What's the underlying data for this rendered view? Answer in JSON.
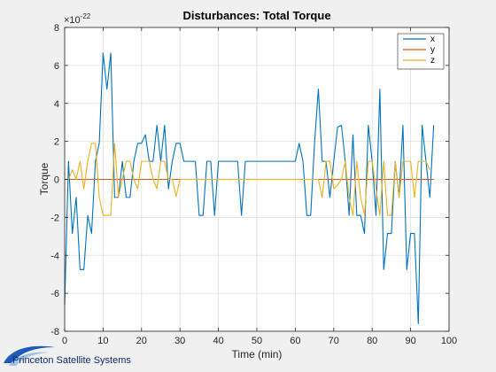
{
  "chart_data": {
    "type": "line",
    "title": "Disturbances: Total Torque",
    "xlabel": "Time (min)",
    "ylabel": "Torque",
    "exponent_label": "×10",
    "exponent": "-22",
    "xlim": [
      0,
      100
    ],
    "ylim": [
      -8,
      8
    ],
    "xticks": [
      0,
      10,
      20,
      30,
      40,
      50,
      60,
      70,
      80,
      90,
      100
    ],
    "yticks": [
      -8,
      -6,
      -4,
      -2,
      0,
      2,
      4,
      6,
      8
    ],
    "grid": true,
    "legend_position": "top-right",
    "series": [
      {
        "name": "x",
        "color": "#0072BD",
        "x": [
          0,
          1,
          2,
          3,
          4,
          5,
          6,
          7,
          8,
          9,
          10,
          11,
          12,
          13,
          14,
          15,
          16,
          17,
          18,
          19,
          20,
          21,
          22,
          23,
          24,
          25,
          26,
          27,
          28,
          29,
          30,
          31,
          32,
          33,
          34,
          35,
          36,
          37,
          38,
          39,
          40,
          41,
          42,
          43,
          44,
          45,
          46,
          47,
          48,
          49,
          50,
          51,
          52,
          53,
          54,
          55,
          56,
          57,
          58,
          59,
          60,
          61,
          62,
          63,
          64,
          65,
          66,
          67,
          68,
          69,
          70,
          71,
          72,
          73,
          74,
          75,
          76,
          77,
          78,
          79,
          80,
          81,
          82,
          83,
          84,
          85,
          86,
          87,
          88,
          89,
          90,
          91,
          92,
          93,
          94,
          95,
          96
        ],
        "y": [
          -6.6,
          0.95,
          -2.85,
          -0.95,
          -4.75,
          -4.75,
          -1.9,
          -2.85,
          0.95,
          1.9,
          6.65,
          4.75,
          6.65,
          -0.95,
          -0.95,
          0.95,
          -0.95,
          -0.95,
          0.95,
          1.9,
          1.9,
          2.35,
          0.95,
          0.95,
          2.85,
          0.95,
          2.85,
          -0.5,
          0.95,
          1.9,
          1.9,
          0.95,
          0.95,
          0.95,
          0.95,
          -1.9,
          -1.9,
          0.95,
          0.95,
          -1.9,
          0.95,
          0.95,
          0.95,
          0.95,
          0.95,
          0.95,
          -1.9,
          0.95,
          0.95,
          0.95,
          0.95,
          0.95,
          0.95,
          0.95,
          0.95,
          0.95,
          0.95,
          0.95,
          0.95,
          0.95,
          0.95,
          1.9,
          0.95,
          -1.9,
          -1.9,
          1.9,
          4.75,
          0.95,
          0.95,
          -0.95,
          0.95,
          2.75,
          2.85,
          0.95,
          -1.9,
          2.35,
          -1.9,
          -1.9,
          -2.85,
          2.85,
          0.95,
          -1.9,
          4.75,
          -4.75,
          -2.85,
          -2.85,
          0.95,
          -0.95,
          2.85,
          -4.75,
          -2.85,
          -2.85,
          -7.6,
          2.85,
          0.95,
          -0.95,
          2.85
        ]
      },
      {
        "name": "y",
        "color": "#D95319",
        "x": [
          0,
          96
        ],
        "y": [
          0,
          0
        ]
      },
      {
        "name": "z",
        "color": "#EDB120",
        "x": [
          1,
          2,
          3,
          4,
          5,
          6,
          7,
          8,
          9,
          10,
          11,
          12,
          13,
          14,
          15,
          16,
          17,
          18,
          19,
          20,
          21,
          22,
          23,
          24,
          25,
          26,
          27,
          28,
          29,
          30,
          31,
          32,
          33,
          34,
          35,
          36,
          37,
          38,
          39,
          40,
          41,
          42,
          43,
          44,
          45,
          46,
          47,
          48,
          49,
          50,
          51,
          52,
          53,
          54,
          55,
          56,
          57,
          58,
          59,
          60,
          61,
          62,
          63,
          64,
          65,
          66,
          67,
          68,
          69,
          70,
          71,
          72,
          73,
          74,
          75,
          76,
          77,
          78,
          79,
          80,
          81,
          82,
          83,
          84,
          85,
          86,
          87,
          88,
          89,
          90,
          91,
          92,
          93,
          94,
          95
        ],
        "y": [
          0,
          0.5,
          0,
          0.95,
          -0.5,
          0.95,
          1.9,
          1.9,
          -0.95,
          -1.9,
          -1.9,
          -1.9,
          1.9,
          -0.95,
          0,
          0.95,
          0.95,
          0,
          -0.5,
          0.95,
          0.95,
          0.95,
          0,
          -0.5,
          0.95,
          0.95,
          0,
          0,
          -0.9,
          0,
          0,
          0,
          0,
          0,
          0,
          0,
          0,
          0,
          0,
          0,
          0,
          0,
          0,
          0,
          0,
          0,
          0,
          0,
          0,
          0,
          0,
          0,
          0,
          0,
          0,
          0,
          0,
          0,
          0,
          0,
          0,
          0,
          0,
          0,
          0,
          0,
          -0.95,
          0.95,
          0.95,
          -0.5,
          -0.3,
          0,
          0.95,
          -0.95,
          -1.9,
          0.95,
          -0.95,
          -1.9,
          0.95,
          0.95,
          -0.5,
          -1.9,
          0.95,
          -1.9,
          -1.9,
          0.95,
          -0.95,
          0.95,
          0.95,
          0.95,
          -0.95,
          0.95,
          0.95,
          0.95,
          0.5
        ]
      }
    ]
  },
  "footer": {
    "logo_text": "Princeton Satellite Systems"
  }
}
